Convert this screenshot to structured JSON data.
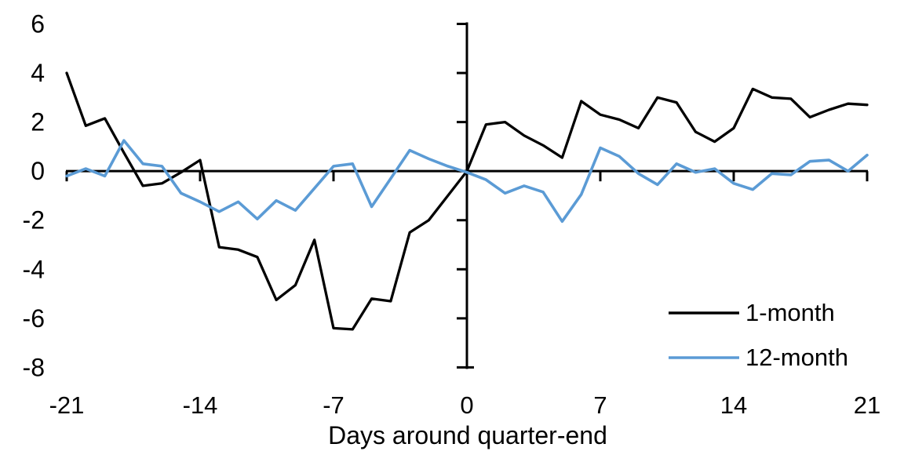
{
  "figure": {
    "background": "#ffffff",
    "text_color": "#000000"
  },
  "chart_data": {
    "type": "line",
    "title": "",
    "xlabel": "Days around quarter-end",
    "ylabel": "",
    "xlim": [
      -21,
      21
    ],
    "ylim": [
      -8,
      6
    ],
    "xticks": [
      -21,
      -14,
      -7,
      0,
      7,
      14,
      21
    ],
    "yticks": [
      6,
      4,
      2,
      0,
      -2,
      -4,
      -6,
      -8
    ],
    "grid": false,
    "legend_position": "lower right",
    "axes_cross_at_zero": true,
    "x": [
      -21,
      -20,
      -19,
      -18,
      -17,
      -16,
      -15,
      -14,
      -13,
      -12,
      -11,
      -10,
      -9,
      -8,
      -7,
      -6,
      -5,
      -4,
      -3,
      -2,
      -1,
      0,
      1,
      2,
      3,
      4,
      5,
      6,
      7,
      8,
      9,
      10,
      11,
      12,
      13,
      14,
      15,
      16,
      17,
      18,
      19,
      20,
      21
    ],
    "series": [
      {
        "name": "1-month",
        "color": "#000000",
        "values": [
          4.0,
          1.85,
          2.15,
          0.75,
          -0.6,
          -0.5,
          -0.05,
          0.45,
          -3.1,
          -3.2,
          -3.5,
          -5.25,
          -4.65,
          -2.8,
          -6.4,
          -6.45,
          -5.2,
          -5.3,
          -2.5,
          -2.0,
          -1.0,
          0.0,
          1.9,
          2.0,
          1.45,
          1.05,
          0.55,
          2.85,
          2.3,
          2.1,
          1.75,
          3.0,
          2.8,
          1.6,
          1.2,
          1.75,
          3.35,
          3.0,
          2.95,
          2.2,
          2.5,
          2.75,
          2.7
        ]
      },
      {
        "name": "12-month",
        "color": "#5B9BD5",
        "values": [
          -0.2,
          0.1,
          -0.2,
          1.25,
          0.3,
          0.2,
          -0.9,
          -1.25,
          -1.65,
          -1.25,
          -1.95,
          -1.2,
          -1.6,
          -0.7,
          0.2,
          0.3,
          -1.45,
          -0.3,
          0.85,
          0.5,
          0.2,
          -0.05,
          -0.35,
          -0.9,
          -0.6,
          -0.85,
          -2.05,
          -0.95,
          0.95,
          0.6,
          -0.1,
          -0.55,
          0.3,
          -0.05,
          0.1,
          -0.5,
          -0.75,
          -0.1,
          -0.15,
          0.4,
          0.45,
          0.0,
          0.65
        ]
      }
    ]
  },
  "legend": {
    "items": [
      {
        "label": "1-month",
        "color": "#000000"
      },
      {
        "label": "12-month",
        "color": "#5B9BD5"
      }
    ]
  }
}
